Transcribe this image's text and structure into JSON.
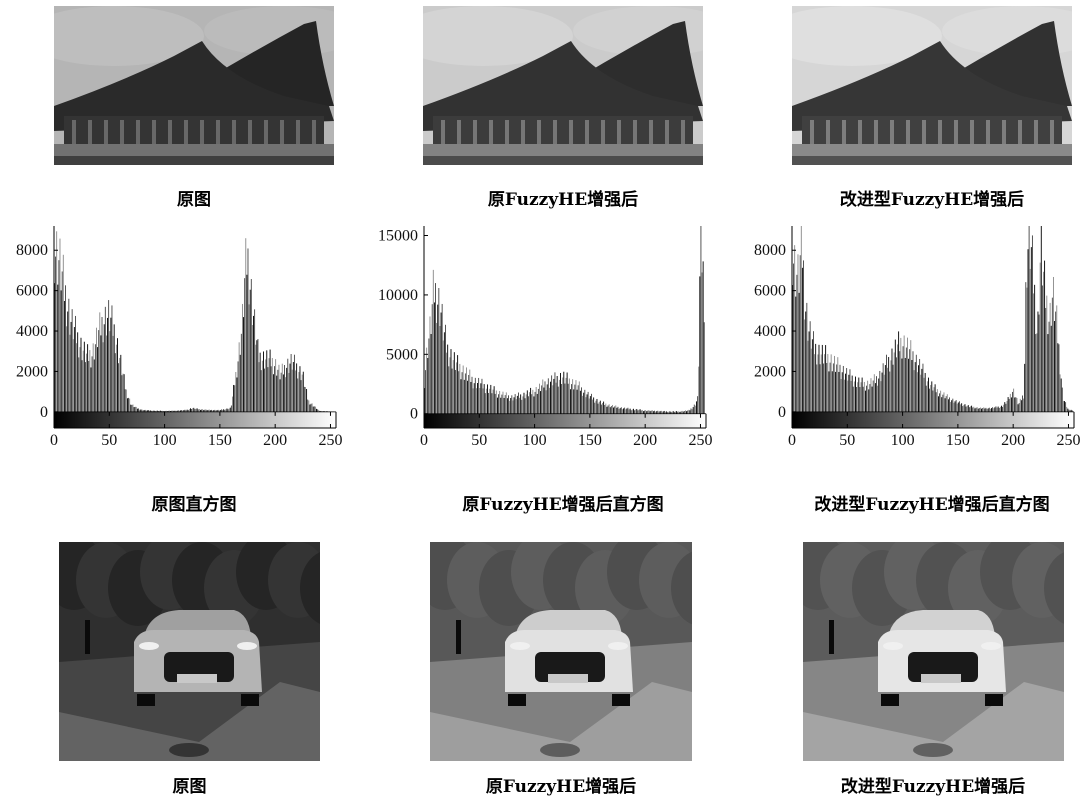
{
  "captions": {
    "row1": [
      "原图",
      "原FuzzyHE增强后",
      "改进型FuzzyHE增强后"
    ],
    "row2": [
      "原图直方图",
      "原FuzzyHE增强后直方图",
      "改进型FuzzyHE增强后直方图"
    ],
    "row3": [
      "原图",
      "原FuzzyHE增强后",
      "改进型FuzzyHE增强后"
    ]
  },
  "photos": {
    "row1": [
      {
        "scene": "palace",
        "brightness": 0.55
      },
      {
        "scene": "palace",
        "brightness": 0.75
      },
      {
        "scene": "palace",
        "brightness": 0.85
      }
    ],
    "row3": [
      {
        "scene": "car",
        "brightness": 0.3
      },
      {
        "scene": "car",
        "brightness": 0.75
      },
      {
        "scene": "car",
        "brightness": 0.8
      }
    ]
  },
  "chart_data": [
    {
      "type": "bar",
      "title": "",
      "xlim": [
        0,
        255
      ],
      "ylim": [
        -800,
        9200
      ],
      "xticks": [
        0,
        50,
        100,
        150,
        200,
        250
      ],
      "yticks": [
        0,
        2000,
        4000,
        6000,
        8000
      ],
      "x": [
        0,
        5,
        10,
        15,
        20,
        25,
        30,
        35,
        40,
        45,
        50,
        55,
        60,
        65,
        70,
        75,
        80,
        90,
        100,
        110,
        120,
        125,
        130,
        140,
        150,
        160,
        165,
        170,
        173,
        175,
        180,
        185,
        190,
        195,
        200,
        205,
        210,
        215,
        220,
        225,
        230,
        240,
        250
      ],
      "values": [
        9200,
        8200,
        6500,
        5000,
        4200,
        3500,
        3000,
        3200,
        4200,
        5000,
        5200,
        4300,
        2800,
        1200,
        400,
        200,
        100,
        60,
        50,
        60,
        100,
        200,
        150,
        100,
        90,
        200,
        2200,
        4500,
        7500,
        8500,
        5500,
        3000,
        2900,
        2800,
        2600,
        2000,
        2500,
        2700,
        2400,
        2000,
        600,
        50,
        20
      ]
    },
    {
      "type": "bar",
      "title": "",
      "xlim": [
        0,
        255
      ],
      "ylim": [
        -1200,
        15800
      ],
      "xticks": [
        0,
        50,
        100,
        150,
        200,
        250
      ],
      "yticks": [
        0,
        5000,
        10000,
        15000
      ],
      "x": [
        0,
        3,
        6,
        9,
        12,
        15,
        18,
        21,
        25,
        30,
        35,
        40,
        45,
        50,
        55,
        60,
        65,
        70,
        75,
        80,
        85,
        90,
        95,
        100,
        105,
        110,
        115,
        120,
        125,
        130,
        135,
        140,
        145,
        150,
        160,
        170,
        180,
        190,
        200,
        210,
        220,
        230,
        240,
        245,
        248,
        250,
        252,
        254
      ],
      "values": [
        2500,
        6000,
        8000,
        11500,
        10800,
        9800,
        7500,
        6000,
        5200,
        4500,
        4000,
        3500,
        3000,
        2800,
        2500,
        2300,
        2000,
        1800,
        1600,
        1500,
        1600,
        1700,
        1900,
        2100,
        2400,
        2800,
        3000,
        3200,
        3400,
        3100,
        2800,
        2500,
        2000,
        1600,
        1000,
        700,
        500,
        400,
        300,
        250,
        200,
        200,
        300,
        800,
        1500,
        15800,
        14000,
        10000
      ]
    },
    {
      "type": "bar",
      "title": "",
      "xlim": [
        0,
        255
      ],
      "ylim": [
        -800,
        9200
      ],
      "xticks": [
        0,
        50,
        100,
        150,
        200,
        250
      ],
      "yticks": [
        0,
        2000,
        4000,
        6000,
        8000
      ],
      "x": [
        0,
        3,
        6,
        9,
        12,
        15,
        20,
        25,
        30,
        35,
        40,
        45,
        50,
        55,
        60,
        65,
        70,
        75,
        80,
        85,
        90,
        95,
        100,
        105,
        110,
        115,
        120,
        125,
        130,
        140,
        150,
        160,
        170,
        180,
        190,
        195,
        200,
        205,
        210,
        212,
        214,
        216,
        218,
        220,
        222,
        225,
        228,
        230,
        233,
        236,
        240,
        245,
        250
      ],
      "values": [
        9200,
        7800,
        7200,
        9200,
        6000,
        4500,
        3500,
        3200,
        3000,
        2800,
        2500,
        2300,
        2000,
        1800,
        1600,
        1500,
        1500,
        1700,
        2000,
        2500,
        3000,
        3500,
        3800,
        3400,
        3000,
        2500,
        2000,
        1500,
        1200,
        800,
        500,
        300,
        200,
        200,
        300,
        600,
        1200,
        400,
        1000,
        8000,
        9200,
        9000,
        7500,
        6000,
        4000,
        9000,
        7000,
        6000,
        5000,
        6500,
        4500,
        800,
        100
      ]
    }
  ]
}
